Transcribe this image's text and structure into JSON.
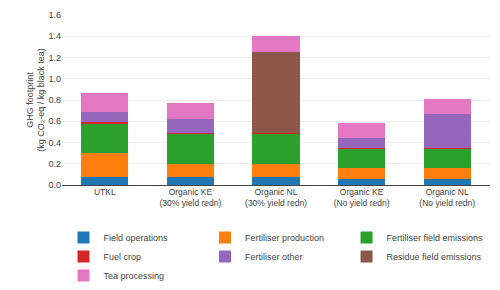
{
  "chart_data": {
    "type": "bar",
    "stacked": true,
    "categories": [
      "UTKL",
      "Organic KE\n(30% yield redn)",
      "Organic NL\n(30% yield redn)",
      "Organic KE\n(No yield redn)",
      "Organic NL\n(No yield redn)"
    ],
    "series": [
      {
        "name": "Field operations",
        "values": [
          0.08,
          0.08,
          0.08,
          0.06,
          0.06
        ]
      },
      {
        "name": "Fertiliser production",
        "values": [
          0.22,
          0.12,
          0.12,
          0.1,
          0.1
        ]
      },
      {
        "name": "Fertiliser field emissions",
        "values": [
          0.28,
          0.28,
          0.28,
          0.18,
          0.18
        ]
      },
      {
        "name": "Fuel crop",
        "values": [
          0.01,
          0.01,
          0.01,
          0.01,
          0.01
        ]
      },
      {
        "name": "Fertiliser other",
        "values": [
          0.1,
          0.13,
          0.0,
          0.09,
          0.32
        ]
      },
      {
        "name": "Residue field emissions",
        "values": [
          0.0,
          0.0,
          0.76,
          0.0,
          0.0
        ]
      },
      {
        "name": "Tea processing",
        "values": [
          0.18,
          0.15,
          0.15,
          0.14,
          0.14
        ]
      }
    ],
    "ylabel": "GHG footprint\n(kg CO₂-eq / kg black tea)",
    "ylim": [
      0,
      1.6
    ],
    "yticks": [
      {
        "value": 0,
        "label": "0.0"
      },
      0.2,
      0.4,
      0.6,
      0.8,
      {
        "value": 1,
        "label": "1.0"
      },
      1.2,
      1.4,
      1.6
    ],
    "grid": true,
    "legend": "bottom"
  }
}
